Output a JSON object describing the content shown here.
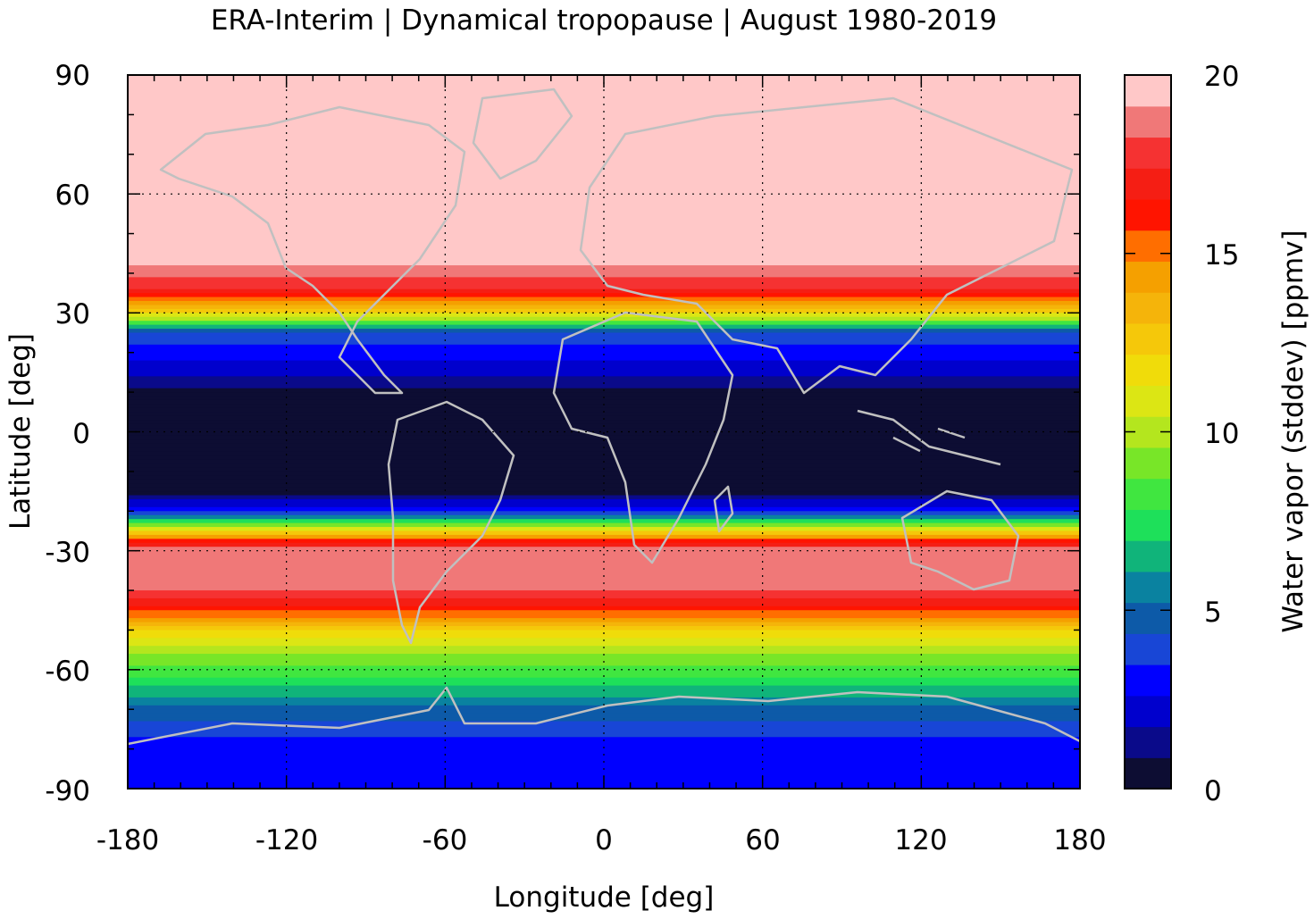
{
  "chart_data": {
    "type": "heatmap",
    "title": "ERA-Interim | Dynamical tropopause | August 1980-2019",
    "xlabel": "Longitude [deg]",
    "ylabel": "Latitude [deg]",
    "colorbar_label": "Water vapor (stddev) [ppmv]",
    "xlim": [
      -180,
      180
    ],
    "ylim": [
      -90,
      90
    ],
    "xticks": [
      "-180",
      "-120",
      "-60",
      "0",
      "60",
      "120",
      "180"
    ],
    "yticks": [
      "90",
      "60",
      "30",
      "0",
      "-30",
      "-60",
      "-90"
    ],
    "grid": true,
    "colorbar": {
      "min": 0,
      "max": 20,
      "ticks": [
        "0",
        "5",
        "10",
        "15",
        "20"
      ],
      "colors": [
        "#0d0d33",
        "#0a0a8a",
        "#0000cd",
        "#0000ff",
        "#1846d6",
        "#0d5aa8",
        "#0a82a0",
        "#10b47a",
        "#1ee05a",
        "#40e640",
        "#78e628",
        "#b4e61e",
        "#dce614",
        "#f0dc0a",
        "#f5c80a",
        "#f5b40a",
        "#f5a000",
        "#ff6e00",
        "#ff1400",
        "#f51e14",
        "#f53232",
        "#f07878",
        "#ffc8c8"
      ]
    },
    "latitude_bands": [
      {
        "lat": 90,
        "value": 20
      },
      {
        "lat": 45,
        "value": 20
      },
      {
        "lat": 35,
        "value": 17
      },
      {
        "lat": 30,
        "value": 12
      },
      {
        "lat": 25,
        "value": 4
      },
      {
        "lat": 15,
        "value": 2
      },
      {
        "lat": 10,
        "value": 0.5
      },
      {
        "lat": -15,
        "value": 0.5
      },
      {
        "lat": -20,
        "value": 3
      },
      {
        "lat": -24,
        "value": 10
      },
      {
        "lat": -27,
        "value": 15
      },
      {
        "lat": -30,
        "value": 19
      },
      {
        "lat": -38,
        "value": 19
      },
      {
        "lat": -45,
        "value": 16
      },
      {
        "lat": -50,
        "value": 12
      },
      {
        "lat": -58,
        "value": 9
      },
      {
        "lat": -64,
        "value": 7
      },
      {
        "lat": -70,
        "value": 5
      },
      {
        "lat": -76,
        "value": 3.5
      },
      {
        "lat": -90,
        "value": 3
      }
    ]
  }
}
